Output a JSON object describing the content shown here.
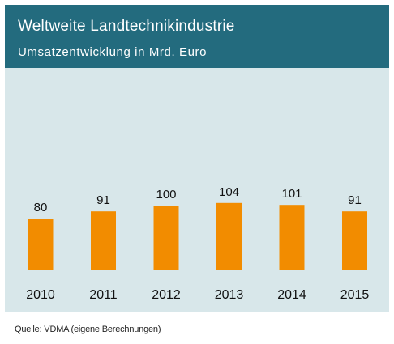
{
  "header": {
    "title": "Weltweite Landtechnikindustrie",
    "subtitle": "Umsatzentwicklung in Mrd. Euro"
  },
  "source": "Quelle: VDMA (eigene Berechnungen)",
  "colors": {
    "header_bg": "#236b7e",
    "plot_bg": "#d8e7ea",
    "bar": "#f28c00"
  },
  "chart_data": {
    "type": "bar",
    "categories": [
      "2010",
      "2011",
      "2012",
      "2013",
      "2014",
      "2015"
    ],
    "values": [
      80,
      91,
      100,
      104,
      101,
      91
    ],
    "data_labels": [
      "80",
      "91",
      "100",
      "104",
      "101",
      "91"
    ],
    "title": "Weltweite Landtechnikindustrie",
    "subtitle": "Umsatzentwicklung in Mrd. Euro",
    "xlabel": "",
    "ylabel": "",
    "ylim": [
      0,
      120
    ],
    "grid": false,
    "legend": "none"
  }
}
